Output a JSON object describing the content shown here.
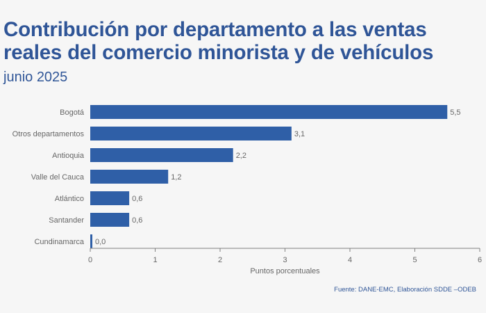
{
  "title": "Contribución por departamento a las ventas reales del comercio minorista y de vehículos",
  "subtitle": "junio 2025",
  "source": "Fuente: DANE-EMC, Elaboración SDDE –ODEB",
  "colors": {
    "bar": "#2f5fa7",
    "title": "#2f5597",
    "axis": "#7f7f7f",
    "text": "#666666"
  },
  "chart_data": {
    "type": "bar",
    "orientation": "horizontal",
    "categories": [
      "Bogotá",
      "Otros departamentos",
      "Antioquia",
      "Valle del Cauca",
      "Atlántico",
      "Santander",
      "Cundinamarca"
    ],
    "values": [
      5.5,
      3.1,
      2.2,
      1.2,
      0.6,
      0.6,
      0.0
    ],
    "value_labels": [
      "5,5",
      "3,1",
      "2,2",
      "1,2",
      "0,6",
      "0,6",
      "0,0"
    ],
    "xlabel": "Puntos porcentuales",
    "ylabel": "",
    "xlim": [
      0,
      6
    ],
    "xticks": [
      "0",
      "1",
      "2",
      "3",
      "4",
      "5",
      "6"
    ],
    "grid": false
  }
}
